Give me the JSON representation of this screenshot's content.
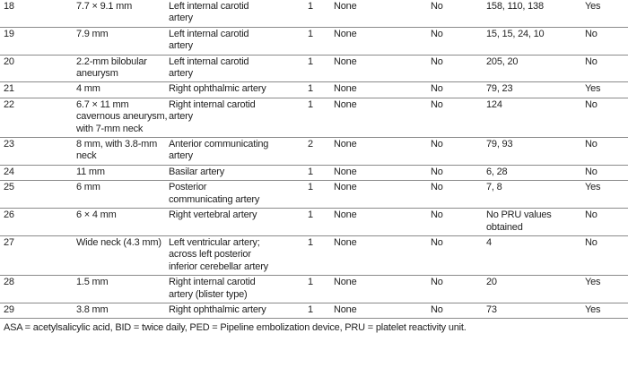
{
  "rows": [
    [
      "18",
      "7.7 × 9.1 mm",
      "Left internal carotid artery",
      "1",
      "None",
      "No",
      "158, 110, 138",
      "Yes"
    ],
    [
      "19",
      "7.9 mm",
      "Left internal carotid artery",
      "1",
      "None",
      "No",
      "15, 15, 24, 10",
      "No"
    ],
    [
      "20",
      "2.2-mm bilobular aneurysm",
      "Left internal carotid artery",
      "1",
      "None",
      "No",
      "205, 20",
      "No"
    ],
    [
      "21",
      "4 mm",
      "Right ophthalmic artery",
      "1",
      "None",
      "No",
      "79, 23",
      "Yes"
    ],
    [
      "22",
      "6.7 × 11 mm cavernous aneurysm, with 7-mm neck",
      "Right internal carotid artery",
      "1",
      "None",
      "No",
      "124",
      "No"
    ],
    [
      "23",
      "8 mm, with 3.8-mm neck",
      "Anterior communicating artery",
      "2",
      "None",
      "No",
      "79, 93",
      "No"
    ],
    [
      "24",
      "11 mm",
      "Basilar artery",
      "1",
      "None",
      "No",
      "6, 28",
      "No"
    ],
    [
      "25",
      "6 mm",
      "Posterior communicating artery",
      "1",
      "None",
      "No",
      "7, 8",
      "Yes"
    ],
    [
      "26",
      "6 × 4 mm",
      "Right vertebral artery",
      "1",
      "None",
      "No",
      "No PRU values obtained",
      "No"
    ],
    [
      "27",
      "Wide neck (4.3 mm)",
      "Left ventricular artery; across left posterior inferior cerebellar artery",
      "1",
      "None",
      "No",
      "4",
      "No"
    ],
    [
      "28",
      "1.5 mm",
      "Right internal carotid artery (blister type)",
      "1",
      "None",
      "No",
      "20",
      "Yes"
    ],
    [
      "29",
      "3.8 mm",
      "Right ophthalmic artery",
      "1",
      "None",
      "No",
      "73",
      "Yes"
    ]
  ],
  "footnote": "ASA = acetylsalicylic acid, BID = twice daily, PED = Pipeline embolization device, PRU = platelet reactivity unit."
}
